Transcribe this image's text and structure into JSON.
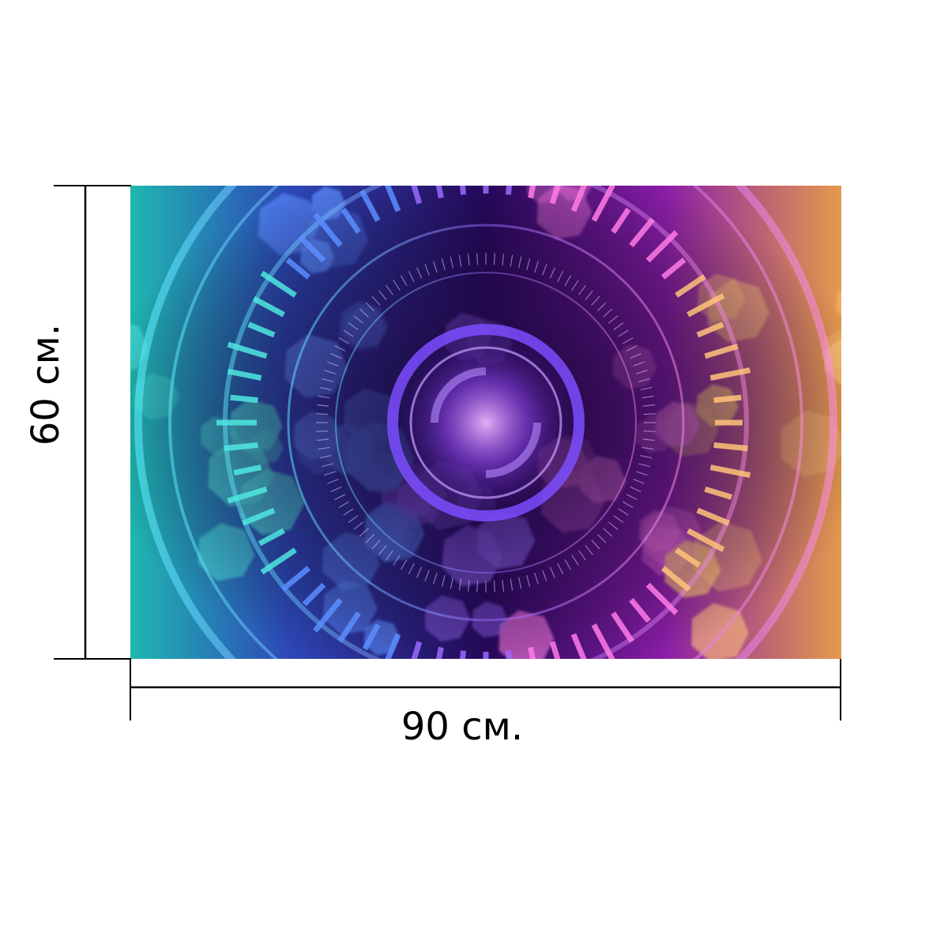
{
  "print": {
    "image": "futuristic-circular-hud-bokeh-art",
    "width_label": "90 см.",
    "height_label": "60 см."
  },
  "palette": {
    "background": "#ffffff",
    "dimension_lines": "#000000",
    "dark_core": "#12062e",
    "violet": "#7b2cff",
    "magenta": "#ff4fd8",
    "cyan": "#35e6ff",
    "teal": "#2ad1c2",
    "gold": "#ffd36b",
    "indigo": "#3c1b9c"
  }
}
